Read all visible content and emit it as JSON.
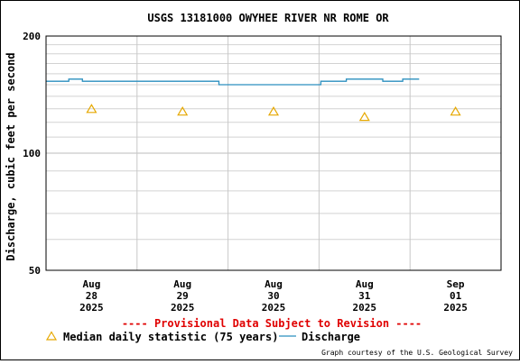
{
  "chart_data": {
    "type": "line",
    "title": "USGS 13181000 OWYHEE RIVER NR ROME OR",
    "ylabel": "Discharge, cubic feet per second",
    "xlabel": "",
    "y_scale": "log",
    "ylim": [
      50,
      200
    ],
    "y_ticks": [
      "200",
      "100",
      "50"
    ],
    "grid": true,
    "x_ticks": [
      {
        "month": "Aug",
        "day": "28",
        "year": "2025",
        "x": 0
      },
      {
        "month": "Aug",
        "day": "29",
        "year": "2025",
        "x": 1
      },
      {
        "month": "Aug",
        "day": "30",
        "year": "2025",
        "x": 2
      },
      {
        "month": "Aug",
        "day": "31",
        "year": "2025",
        "x": 3
      },
      {
        "month": "Sep",
        "day": "01",
        "year": "2025",
        "x": 4
      }
    ],
    "xlim": [
      -0.5,
      4.5
    ],
    "series": [
      {
        "name": "Discharge",
        "color": "#2a8fbf",
        "style": "step",
        "points": [
          [
            -0.5,
            153
          ],
          [
            -0.25,
            153
          ],
          [
            -0.25,
            155
          ],
          [
            -0.1,
            155
          ],
          [
            -0.1,
            153
          ],
          [
            1.4,
            153
          ],
          [
            1.4,
            150
          ],
          [
            2.52,
            150
          ],
          [
            2.52,
            153
          ],
          [
            2.8,
            153
          ],
          [
            2.8,
            155
          ],
          [
            3.2,
            155
          ],
          [
            3.2,
            153
          ],
          [
            3.42,
            153
          ],
          [
            3.42,
            155
          ],
          [
            3.6,
            155
          ]
        ]
      },
      {
        "name": "Median daily statistic (75 years)",
        "color": "#e6a800",
        "style": "marker",
        "marker": "triangle",
        "points": [
          [
            0,
            130
          ],
          [
            1,
            128
          ],
          [
            2,
            128
          ],
          [
            3,
            124
          ],
          [
            4,
            128
          ]
        ]
      }
    ],
    "legend": {
      "position": "bottom",
      "items": [
        "Median daily statistic (75 years)",
        "Discharge"
      ]
    },
    "annotations": {
      "provisional": "---- Provisional Data Subject to Revision ----",
      "credit": "Graph courtesy of the U.S. Geological Survey"
    }
  }
}
